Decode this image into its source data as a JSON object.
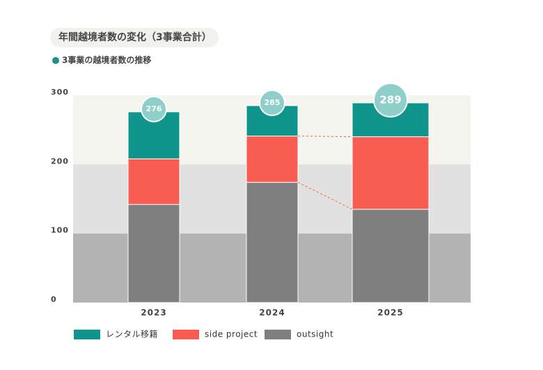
{
  "chart_data": {
    "type": "stacked_bar",
    "title": "年間越境者数の変化（3事業合計）",
    "subtitle": "3事業の越境者数の推移",
    "subtitle_color": "#1a9189",
    "categories": [
      "2023",
      "2024",
      "2025"
    ],
    "series": [
      {
        "name": "レンタル移籍",
        "color": "#0f958b",
        "values": [
          68,
          44,
          49
        ]
      },
      {
        "name": "side project",
        "color": "#f95c50",
        "values": [
          66,
          67,
          105
        ]
      },
      {
        "name": "outsight",
        "color": "#7f7f7f",
        "values": [
          142,
          174,
          135
        ]
      }
    ],
    "totals": [
      276,
      285,
      289
    ],
    "total_color": "#8ecfca",
    "ylim": [
      0,
      300
    ],
    "yticks": [
      0,
      100,
      200,
      300
    ],
    "band_colors": [
      "#b3b3b3",
      "#e1e1e1",
      "#f5f5ef"
    ]
  }
}
